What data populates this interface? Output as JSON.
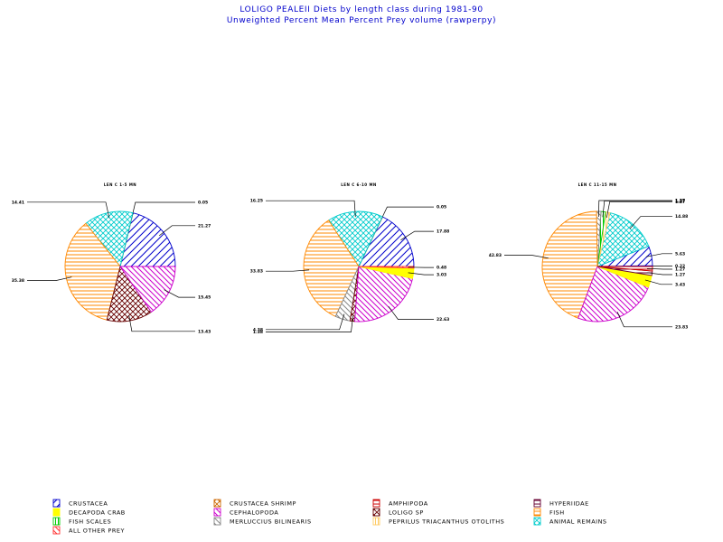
{
  "header": {
    "title_line1": "LOLIGO PEALEII Diets by length class during 1981-90",
    "title_line2": "Unweighted Percent Mean Percent Prey  volume (rawperpy)"
  },
  "chart_data": {
    "type": "pie",
    "categories": [
      {
        "key": "crustacea",
        "label": "CRUSTACEA",
        "color": "#0000cc",
        "pattern": "diag-fwd"
      },
      {
        "key": "crustacea_shrimp",
        "label": "CRUSTACEA SHRIMP",
        "color": "#cc6600",
        "pattern": "crosshatch"
      },
      {
        "key": "amphipoda",
        "label": "AMPHIPODA",
        "color": "#cc0000",
        "pattern": "horizontal"
      },
      {
        "key": "hyperiidae",
        "label": "HYPERIIDAE",
        "color": "#660033",
        "pattern": "horizontal"
      },
      {
        "key": "decapoda_crab",
        "label": "DECAPODA CRAB",
        "color": "#ffff00",
        "pattern": "solid"
      },
      {
        "key": "cephalopoda",
        "label": "CEPHALOPODA",
        "color": "#cc00cc",
        "pattern": "diag-back"
      },
      {
        "key": "loligo_sp",
        "label": "LOLIGO SP",
        "color": "#660000",
        "pattern": "crosshatch"
      },
      {
        "key": "fish",
        "label": "FISH",
        "color": "#ff8800",
        "pattern": "horizontal"
      },
      {
        "key": "fish_scales",
        "label": "FISH SCALES",
        "color": "#00cc00",
        "pattern": "vertical"
      },
      {
        "key": "merluccius_bilinearis",
        "label": "MERLUCCIUS BILINEARIS",
        "color": "#888888",
        "pattern": "diag-back"
      },
      {
        "key": "peprilus_triacanthus_otoliths",
        "label": "PEPRILUS TRIACANTHUS OTOLITHS",
        "color": "#ffcc66",
        "pattern": "vertical"
      },
      {
        "key": "animal_remains",
        "label": "ANIMAL REMAINS",
        "color": "#00cccc",
        "pattern": "crosshatch"
      },
      {
        "key": "all_other_prey",
        "label": "ALL OTHER PREY",
        "color": "#ff3333",
        "pattern": "diag-back"
      }
    ],
    "pies": [
      {
        "title": "LEN C 1-5 MN",
        "slices": [
          {
            "category": "crustacea",
            "value": 21.27,
            "label": "21.27"
          },
          {
            "category": "crustacea_shrimp",
            "value": 0.05,
            "label": "0.05"
          },
          {
            "category": "animal_remains",
            "value": 14.41,
            "label": "14.41"
          },
          {
            "category": "fish",
            "value": 35.38,
            "label": "35.38"
          },
          {
            "category": "loligo_sp",
            "value": 13.43,
            "label": "13.43"
          },
          {
            "category": "cephalopoda",
            "value": 15.45,
            "label": "15.45"
          }
        ]
      },
      {
        "title": "LEN C 6-10 MN",
        "slices": [
          {
            "category": "crustacea",
            "value": 17.88,
            "label": "17.88"
          },
          {
            "category": "crustacea_shrimp",
            "value": 0.05,
            "label": "0.05"
          },
          {
            "category": "animal_remains",
            "value": 16.25,
            "label": "16.25"
          },
          {
            "category": "fish",
            "value": 33.83,
            "label": "33.83"
          },
          {
            "category": "merluccius_bilinearis",
            "value": 4.38,
            "label": "4.38"
          },
          {
            "category": "loligo_sp",
            "value": 1.38,
            "label": "1.38"
          },
          {
            "category": "cephalopoda",
            "value": 22.63,
            "label": "22.63"
          },
          {
            "category": "decapoda_crab",
            "value": 3.03,
            "label": "3.03"
          },
          {
            "category": "all_other_prey",
            "value": 0.48,
            "label": "0.48"
          }
        ]
      },
      {
        "title": "LEN C 11-15 MN",
        "slices": [
          {
            "category": "crustacea_shrimp",
            "value": 0.22,
            "label": "0.22"
          },
          {
            "category": "crustacea",
            "value": 5.63,
            "label": "5.63"
          },
          {
            "category": "animal_remains",
            "value": 14.88,
            "label": "14.88"
          },
          {
            "category": "peprilus_triacanthus_otoliths",
            "value": 1.27,
            "label": "1.27"
          },
          {
            "category": "fish_scales",
            "value": 1.27,
            "label": "1.27"
          },
          {
            "category": "merluccius_bilinearis",
            "value": 1.27,
            "label": "1.27"
          },
          {
            "category": "fish",
            "value": 42.83,
            "label": "42.83"
          },
          {
            "category": "cephalopoda",
            "value": 23.83,
            "label": "23.83"
          },
          {
            "category": "decapoda_crab",
            "value": 3.43,
            "label": "3.43"
          },
          {
            "category": "hyperiidae",
            "value": 1.27,
            "label": "1.27"
          },
          {
            "category": "amphipoda",
            "value": 1.27,
            "label": "1.27"
          }
        ]
      }
    ]
  }
}
